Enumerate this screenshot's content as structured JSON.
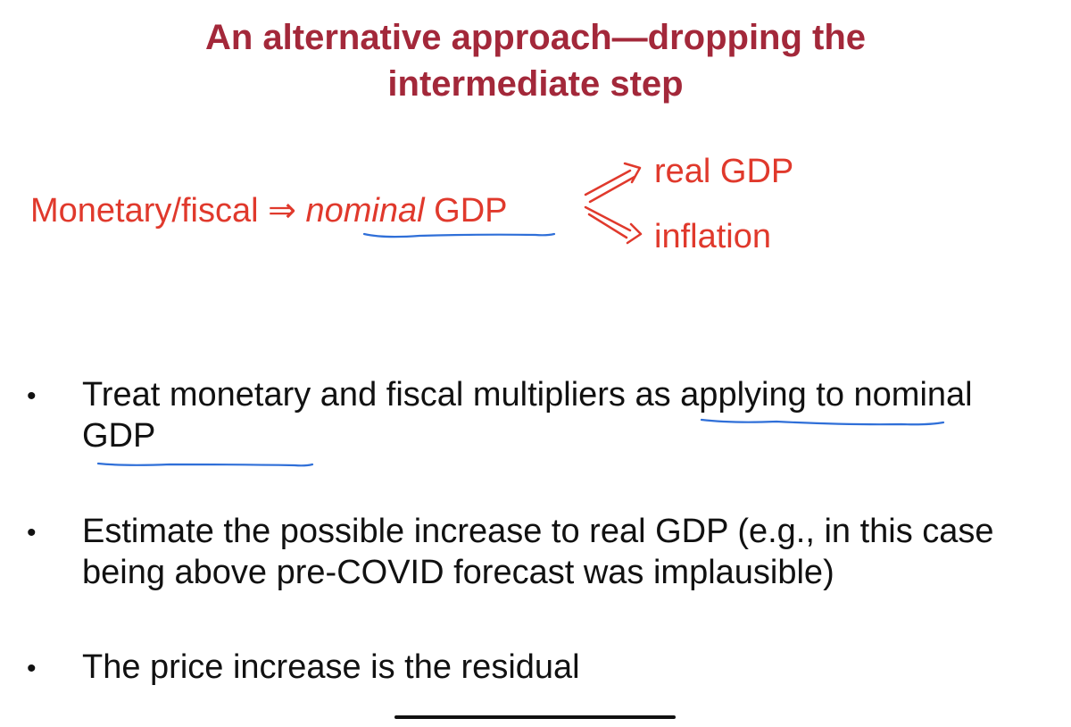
{
  "title": {
    "line1": "An alternative approach—dropping the",
    "line2": "intermediate step"
  },
  "flow": {
    "prefix": "Monetary/fiscal ⇒ ",
    "nominal": "nominal",
    "gdp": " GDP",
    "outputs": [
      "real GDP",
      "inflation"
    ]
  },
  "bullets": [
    "Treat monetary and fiscal multipliers as applying to nominal GDP",
    "Estimate the possible increase to real GDP (e.g., in this case being above pre-COVID forecast was implausible)",
    "The price increase is the residual"
  ],
  "bullet_symbol": "•",
  "colors": {
    "title": "#a3283a",
    "flow_text": "#e0392c",
    "body_text": "#111111",
    "annotation_underline": "#2f6fd8"
  }
}
